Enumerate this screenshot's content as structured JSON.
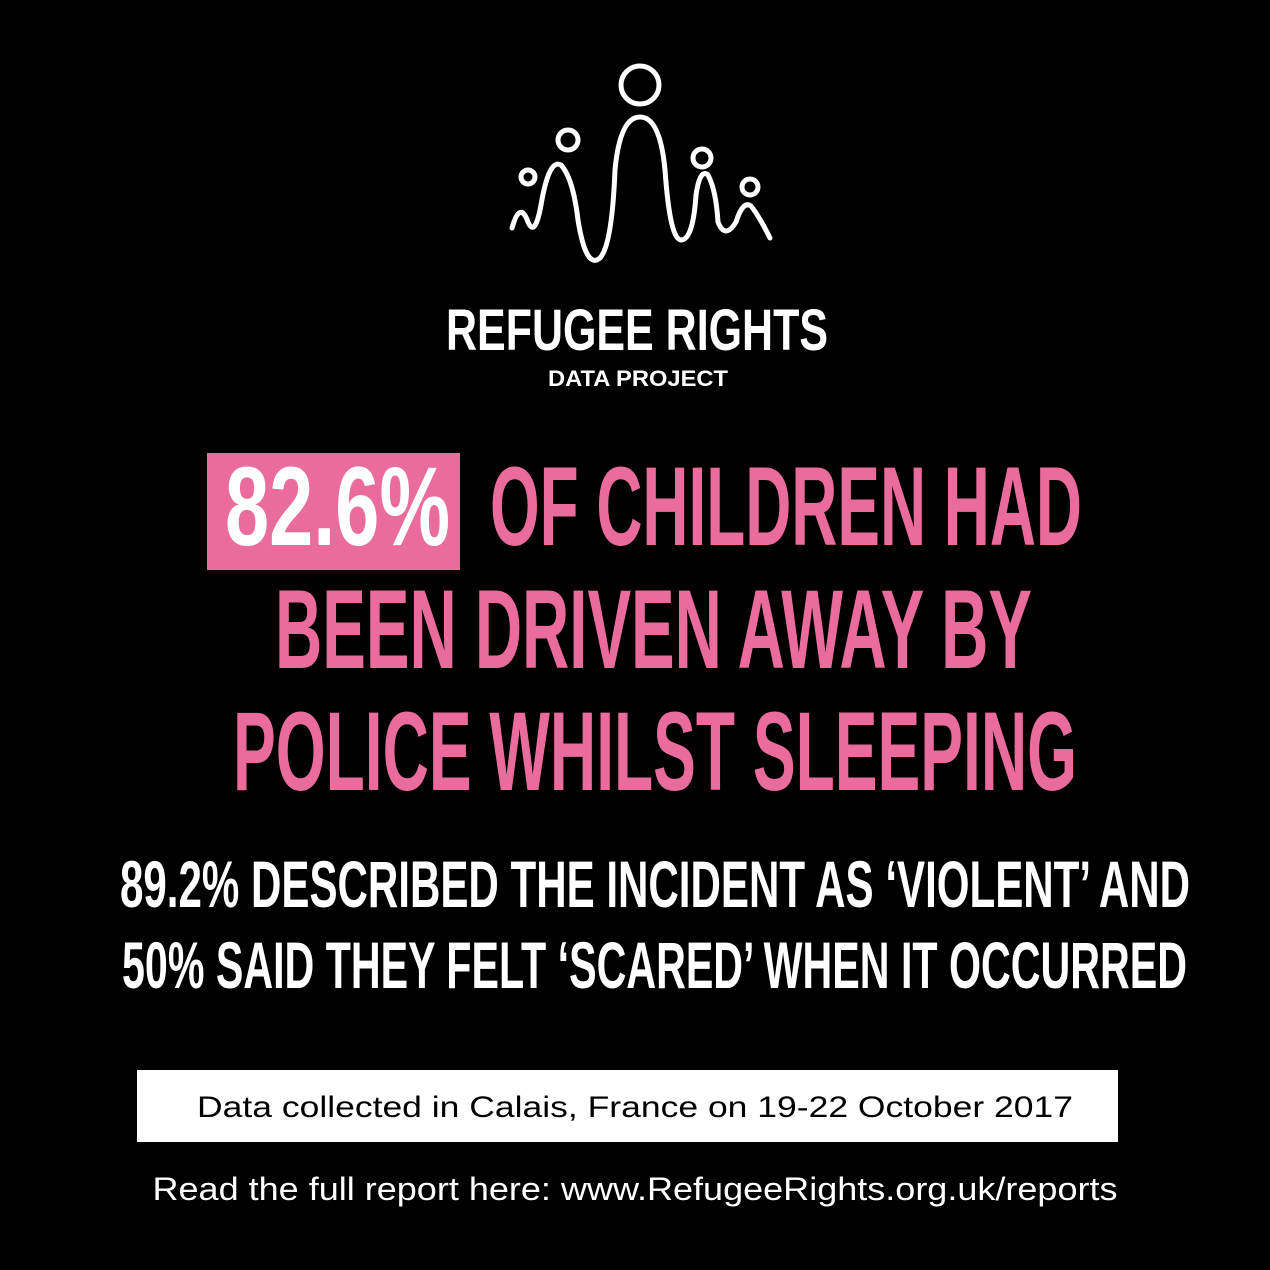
{
  "logo": {
    "title": "REFUGEE RIGHTS",
    "subtitle": "DATA PROJECT"
  },
  "headline": {
    "highlight": "82.6%",
    "lines": [
      "OF CHILDREN HAD",
      "BEEN DRIVEN AWAY BY",
      "POLICE WHILST SLEEPING"
    ]
  },
  "stats": {
    "lines": [
      "89.2% DESCRIBED THE INCIDENT AS ‘VIOLENT’ AND",
      "50% SAID THEY FELT ‘SCARED’ WHEN IT OCCURRED"
    ]
  },
  "footnote": "Data collected in Calais, France on 19-22 October 2017",
  "link": "Read the full report here: www.RefugeeRights.org.uk/reports"
}
